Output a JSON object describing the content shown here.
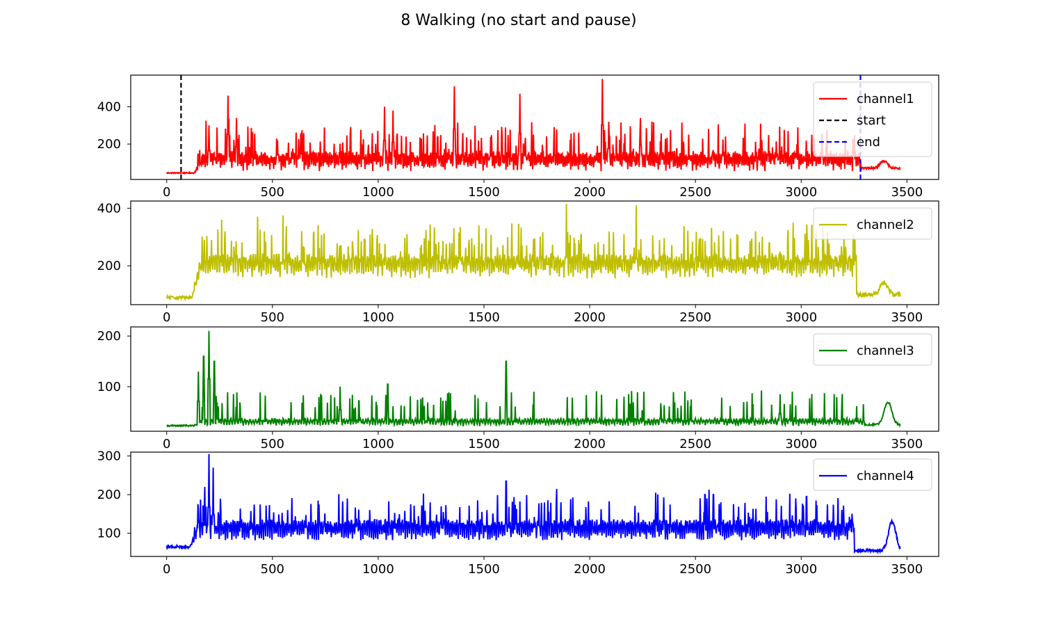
{
  "chart_data": {
    "title": "8 Walking (no start and pause)",
    "type": "line",
    "panels": [
      {
        "name": "channel1",
        "color": "#ff0000",
        "xlim": [
          -170,
          3650
        ],
        "ylim": [
          10,
          570
        ],
        "xticks": [
          0,
          500,
          1000,
          1500,
          2000,
          2500,
          3000,
          3500
        ],
        "yticks": [
          200,
          400
        ],
        "baseline": 45,
        "active": [
          130,
          3280
        ],
        "gen": {
          "base": 110,
          "amp": 70,
          "spikeProb": 0.22,
          "spikeAmp": [
            60,
            180
          ],
          "period": 9,
          "tailLevel": 70,
          "tailBump": [
            3390,
            110
          ]
        },
        "peaks": [
          [
            200,
            300
          ],
          [
            290,
            460
          ],
          [
            330,
            340
          ],
          [
            1030,
            400
          ],
          [
            1070,
            380
          ],
          [
            1360,
            510
          ],
          [
            1670,
            470
          ],
          [
            2060,
            550
          ],
          [
            2090,
            320
          ],
          [
            2240,
            340
          ]
        ],
        "vlines": [
          {
            "x": 68,
            "color": "#000000",
            "label": "start"
          },
          {
            "x": 3280,
            "color": "#0000ff",
            "label": "end"
          }
        ],
        "legend": [
          "channel1",
          "start",
          "end"
        ]
      },
      {
        "name": "channel2",
        "color": "#bfbf00",
        "xlim": [
          -170,
          3650
        ],
        "ylim": [
          65,
          425
        ],
        "xticks": [
          0,
          500,
          1000,
          1500,
          2000,
          2500,
          3000,
          3500
        ],
        "yticks": [
          200,
          400
        ],
        "baseline": 90,
        "active": [
          120,
          3260
        ],
        "gen": {
          "base": 200,
          "amp": 55,
          "spikeProb": 0.2,
          "spikeAmp": [
            50,
            120
          ],
          "period": 11,
          "tailLevel": 100,
          "tailBump": [
            3390,
            140
          ]
        },
        "peaks": [
          [
            260,
            360
          ],
          [
            430,
            370
          ],
          [
            550,
            375
          ],
          [
            1890,
            415
          ],
          [
            2220,
            410
          ],
          [
            1510,
            330
          ],
          [
            3070,
            320
          ]
        ],
        "vlines": [],
        "legend": [
          "channel2"
        ]
      },
      {
        "name": "channel3",
        "color": "#008000",
        "xlim": [
          -170,
          3650
        ],
        "ylim": [
          12,
          218
        ],
        "xticks": [
          0,
          500,
          1000,
          1500,
          2000,
          2500,
          3000,
          3500
        ],
        "yticks": [
          100,
          200
        ],
        "baseline": 23,
        "active": [
          130,
          3300
        ],
        "gen": {
          "base": 30,
          "amp": 10,
          "spikeProb": 0.14,
          "spikeAmp": [
            25,
            60
          ],
          "period": 13,
          "tailLevel": 25,
          "tailBump": [
            3410,
            70
          ]
        },
        "peaks": [
          [
            150,
            130
          ],
          [
            175,
            160
          ],
          [
            200,
            210
          ],
          [
            225,
            150
          ],
          [
            1605,
            150
          ],
          [
            820,
            100
          ],
          [
            1045,
            105
          ],
          [
            2900,
            85
          ]
        ],
        "vlines": [],
        "legend": [
          "channel3"
        ]
      },
      {
        "name": "channel4",
        "color": "#0000ff",
        "xlim": [
          -170,
          3650
        ],
        "ylim": [
          40,
          310
        ],
        "xticks": [
          0,
          500,
          1000,
          1500,
          2000,
          2500,
          3000,
          3500
        ],
        "yticks": [
          100,
          200,
          300
        ],
        "baseline": 65,
        "active": [
          110,
          3250
        ],
        "gen": {
          "base": 110,
          "amp": 35,
          "spikeProb": 0.16,
          "spikeAmp": [
            30,
            80
          ],
          "period": 10,
          "tailLevel": 55,
          "tailBump": [
            3430,
            130
          ]
        },
        "peaks": [
          [
            180,
            220
          ],
          [
            200,
            305
          ],
          [
            220,
            270
          ],
          [
            1605,
            235
          ],
          [
            2545,
            200
          ],
          [
            2585,
            200
          ],
          [
            3025,
            195
          ]
        ],
        "vlines": [],
        "legend": [
          "channel4"
        ]
      }
    ],
    "grid": false,
    "legend_placement": "upper right",
    "samples": 3470
  }
}
